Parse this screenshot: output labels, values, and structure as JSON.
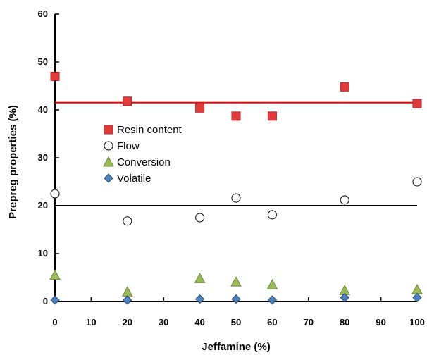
{
  "chart_data": {
    "type": "scatter",
    "title": "",
    "xlabel": "Jeffamine (%)",
    "ylabel": "Prepreg properties  (%)",
    "xlim": [
      0,
      100
    ],
    "ylim": [
      0,
      60
    ],
    "xticks": [
      0,
      10,
      20,
      30,
      40,
      50,
      60,
      70,
      80,
      90,
      100
    ],
    "yticks": [
      0,
      10,
      20,
      30,
      40,
      50,
      60
    ],
    "xtick_labels": [
      "0",
      "10",
      "20",
      "30",
      "40",
      "50",
      "60",
      "70",
      "80",
      "90",
      "100"
    ],
    "ytick_labels": [
      "0",
      "10",
      "20",
      "30",
      "40",
      "50",
      "60"
    ],
    "grid": false,
    "legend_position": "middle-left",
    "series": [
      {
        "name": "Resin content",
        "marker": "square",
        "color": "#e03c3c",
        "stroke": "#b02a2a",
        "x": [
          0,
          20,
          40,
          50,
          60,
          80,
          100
        ],
        "y": [
          47,
          41.8,
          40.4,
          38.7,
          38.7,
          44.8,
          41.3
        ]
      },
      {
        "name": "Flow",
        "marker": "circle-open",
        "color": "#ffffff",
        "stroke": "#000000",
        "x": [
          0,
          20,
          40,
          50,
          60,
          80,
          100
        ],
        "y": [
          22.5,
          16.8,
          17.5,
          21.6,
          18.1,
          21.2,
          25
        ]
      },
      {
        "name": "Conversion",
        "marker": "triangle",
        "color": "#9bbb59",
        "stroke": "#6a8a3a",
        "x": [
          0,
          20,
          40,
          50,
          60,
          80,
          100
        ],
        "y": [
          5.5,
          2,
          4.8,
          4.1,
          3.5,
          2.3,
          2.5
        ]
      },
      {
        "name": "Volatile",
        "marker": "diamond",
        "color": "#4f81bd",
        "stroke": "#2c4d75",
        "x": [
          0,
          20,
          40,
          50,
          60,
          80,
          100
        ],
        "y": [
          0.3,
          0.3,
          0.5,
          0.5,
          0.3,
          0.8,
          0.8
        ]
      }
    ],
    "reference_lines": [
      {
        "color": "#ff0000",
        "x": [
          0,
          100
        ],
        "y": [
          41.5,
          41.5
        ]
      },
      {
        "color": "#000000",
        "x": [
          0,
          100
        ],
        "y": [
          20,
          20
        ]
      }
    ]
  }
}
